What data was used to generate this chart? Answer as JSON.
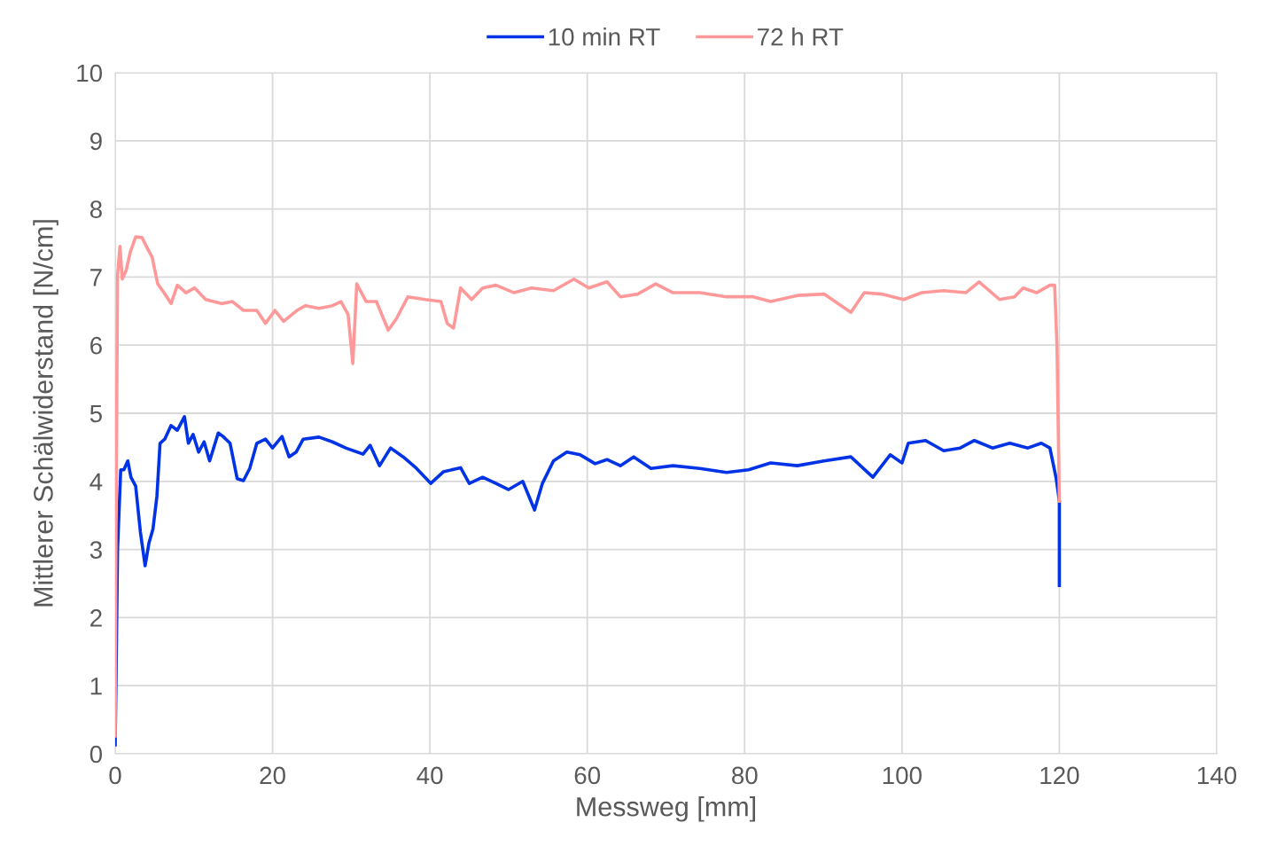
{
  "chart_data": {
    "type": "line",
    "xlabel": "Messweg [mm]",
    "ylabel": "Mittlerer Schälwiderstand [N/cm]",
    "xlim": [
      0,
      140
    ],
    "xticks": [
      0,
      20,
      40,
      60,
      80,
      100,
      120,
      140
    ],
    "ylim": [
      0,
      10
    ],
    "yticks": [
      0,
      1,
      2,
      3,
      4,
      5,
      6,
      7,
      8,
      9,
      10
    ],
    "grid": true,
    "legend": "top",
    "marker": "none",
    "line_style": "solid",
    "series": [
      {
        "name": "10 min RT",
        "color": "#0033e6",
        "x": [
          0,
          0.1,
          0.3,
          0.7,
          1.1,
          1.6,
          2.0,
          2.6,
          3.2,
          3.8,
          4.3,
          4.8,
          5.3,
          5.7,
          6.3,
          7.1,
          7.9,
          8.8,
          9.3,
          9.9,
          10.6,
          11.3,
          12.0,
          13.1,
          13.7,
          14.6,
          15.5,
          16.3,
          17.1,
          18.0,
          19.1,
          20.0,
          21.2,
          22.1,
          23.0,
          23.9,
          25.9,
          27.6,
          29.3,
          31.5,
          32.4,
          33.6,
          35.0,
          36.6,
          38.3,
          40.1,
          41.7,
          43.9,
          45.0,
          46.7,
          48.4,
          50.0,
          51.8,
          53.3,
          54.3,
          55.7,
          57.4,
          59.1,
          61.0,
          62.5,
          64.2,
          65.9,
          68.1,
          70.9,
          74.3,
          77.7,
          80.5,
          83.3,
          86.7,
          90.1,
          93.5,
          96.3,
          98.5,
          100,
          100.8,
          103.0,
          105.3,
          107.4,
          109.2,
          111.5,
          113.7,
          116.0,
          117.7,
          118.8,
          119.6,
          120.0,
          120.0
        ],
        "values": [
          0.13,
          1.04,
          3.0,
          4.17,
          4.17,
          4.3,
          4.06,
          3.93,
          3.26,
          2.76,
          3.1,
          3.3,
          3.78,
          4.56,
          4.62,
          4.82,
          4.75,
          4.95,
          4.56,
          4.69,
          4.43,
          4.58,
          4.3,
          4.71,
          4.66,
          4.56,
          4.04,
          4.01,
          4.19,
          4.56,
          4.62,
          4.49,
          4.66,
          4.36,
          4.43,
          4.62,
          4.65,
          4.58,
          4.49,
          4.4,
          4.53,
          4.23,
          4.49,
          4.36,
          4.19,
          3.97,
          4.14,
          4.2,
          3.97,
          4.06,
          3.97,
          3.88,
          4.0,
          3.58,
          3.97,
          4.3,
          4.43,
          4.39,
          4.26,
          4.32,
          4.23,
          4.36,
          4.19,
          4.23,
          4.19,
          4.13,
          4.17,
          4.27,
          4.23,
          4.3,
          4.36,
          4.06,
          4.39,
          4.27,
          4.56,
          4.6,
          4.45,
          4.49,
          4.6,
          4.49,
          4.56,
          4.49,
          4.56,
          4.49,
          4.04,
          3.71,
          2.47
        ]
      },
      {
        "name": "72 h RT",
        "color": "#ff9999",
        "x": [
          0,
          0.1,
          0.3,
          0.6,
          0.9,
          1.4,
          1.9,
          2.6,
          3.4,
          4.1,
          4.7,
          5.4,
          6.2,
          7.1,
          7.9,
          9.0,
          10.1,
          11.5,
          13.5,
          14.9,
          16.3,
          18.0,
          19.1,
          20.3,
          21.4,
          23.1,
          24.2,
          25.9,
          27.6,
          28.7,
          29.6,
          30.2,
          30.7,
          31.9,
          33.2,
          34.7,
          35.7,
          37.2,
          39.4,
          41.4,
          42.2,
          43.0,
          43.9,
          45.3,
          46.7,
          48.4,
          50.7,
          52.9,
          55.7,
          58.3,
          60.2,
          62.5,
          64.2,
          66.4,
          68.7,
          70.9,
          74.3,
          77.7,
          81.1,
          83.3,
          86.7,
          90.1,
          93.5,
          95.2,
          97.4,
          100.2,
          102.5,
          105.3,
          108.1,
          109.8,
          112.4,
          114.3,
          115.4,
          117.1,
          118.8,
          119.4,
          119.7,
          120.0
        ],
        "values": [
          0.26,
          3.26,
          7.03,
          7.45,
          6.97,
          7.1,
          7.36,
          7.59,
          7.58,
          7.42,
          7.29,
          6.9,
          6.77,
          6.61,
          6.88,
          6.77,
          6.84,
          6.67,
          6.61,
          6.64,
          6.51,
          6.51,
          6.32,
          6.51,
          6.35,
          6.51,
          6.58,
          6.54,
          6.58,
          6.64,
          6.45,
          5.73,
          6.9,
          6.64,
          6.64,
          6.22,
          6.38,
          6.71,
          6.67,
          6.64,
          6.32,
          6.25,
          6.84,
          6.67,
          6.84,
          6.88,
          6.77,
          6.84,
          6.8,
          6.97,
          6.84,
          6.93,
          6.71,
          6.75,
          6.9,
          6.77,
          6.77,
          6.71,
          6.71,
          6.64,
          6.73,
          6.75,
          6.48,
          6.77,
          6.75,
          6.67,
          6.77,
          6.8,
          6.77,
          6.93,
          6.67,
          6.71,
          6.84,
          6.77,
          6.88,
          6.88,
          5.99,
          3.71
        ]
      }
    ]
  }
}
